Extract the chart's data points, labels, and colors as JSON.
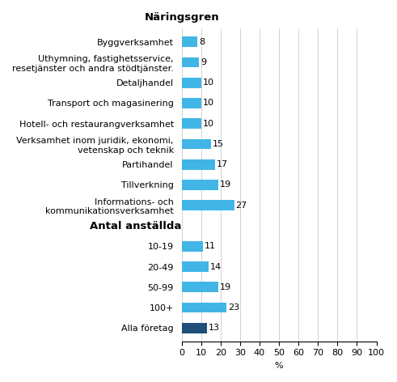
{
  "categories": [
    "Byggverksamhet",
    "Uthymning, fastighetsservice,\nresetjänster och andra stödtjänster.",
    "Detaljhandel",
    "Transport och magasinering",
    "Hotell- och restaurangverksamhet",
    "Verksamhet inom juridik, ekonomi,\nvetenskap och teknik",
    "Partihandel",
    "Tillverkning",
    "Informations- och\nkommunikationsverksamhet",
    "Antal anställda",
    "10-19",
    "20-49",
    "50-99",
    "100+",
    "Alla företag"
  ],
  "values": [
    8,
    9,
    10,
    10,
    10,
    15,
    17,
    19,
    27,
    null,
    11,
    14,
    19,
    23,
    13
  ],
  "bar_colors": [
    "#41b6e6",
    "#41b6e6",
    "#41b6e6",
    "#41b6e6",
    "#41b6e6",
    "#41b6e6",
    "#41b6e6",
    "#41b6e6",
    "#41b6e6",
    null,
    "#41b6e6",
    "#41b6e6",
    "#41b6e6",
    "#41b6e6",
    "#1f4e79"
  ],
  "header_indices": [
    9
  ],
  "section_header": "Näringsgren",
  "xlabel": "%",
  "xlim": [
    0,
    100
  ],
  "xticks": [
    0,
    10,
    20,
    30,
    40,
    50,
    60,
    70,
    80,
    90,
    100
  ],
  "value_fontsize": 8,
  "label_fontsize": 8,
  "header_fontsize": 9.5
}
